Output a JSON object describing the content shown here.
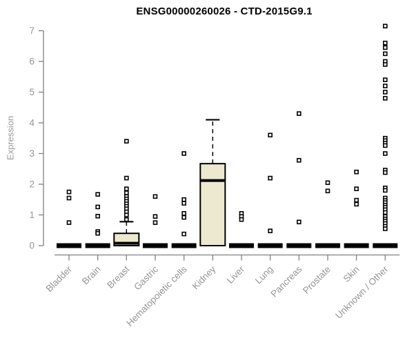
{
  "chart_data": {
    "type": "boxplot",
    "title": "ENSG00000260026 - CTD-2015G9.1",
    "ylabel": "Expression",
    "ylim": [
      0,
      7
    ],
    "yticks": [
      0,
      1,
      2,
      3,
      4,
      5,
      6,
      7
    ],
    "grid": false,
    "legend": "none",
    "box_fill": "#EDE8D0",
    "box_stroke": "#000000",
    "axis_color": "#808080",
    "label_color": "#959595",
    "categories": [
      {
        "label": "Bladder",
        "q1": 0,
        "median": 0,
        "q3": 0,
        "outliers": [
          1.75,
          1.55,
          0.75
        ]
      },
      {
        "label": "Brain",
        "q1": 0,
        "median": 0,
        "q3": 0,
        "outliers": [
          1.67,
          1.26,
          0.96,
          0.46,
          0.4
        ]
      },
      {
        "label": "Breast",
        "q1": 0,
        "median": 0.08,
        "q3": 0.4,
        "whisker_high": 0.78,
        "outliers": [
          3.4,
          2.2,
          1.85,
          1.72,
          1.6,
          1.52,
          1.44,
          1.36,
          1.28,
          1.2,
          1.1,
          1.0,
          0.85
        ]
      },
      {
        "label": "Gastric",
        "q1": 0,
        "median": 0,
        "q3": 0,
        "outliers": [
          1.6,
          0.95,
          0.75
        ]
      },
      {
        "label": "Hematopoietic cells",
        "q1": 0,
        "median": 0,
        "q3": 0,
        "outliers": [
          3.0,
          1.5,
          1.38,
          1.05,
          0.92,
          0.38
        ]
      },
      {
        "label": "Kidney",
        "q1": 0,
        "median": 2.12,
        "q3": 2.67,
        "whisker_high": 4.1,
        "outliers": []
      },
      {
        "label": "Liver",
        "q1": 0,
        "median": 0,
        "q3": 0,
        "outliers": [
          1.05,
          0.95,
          0.85
        ]
      },
      {
        "label": "Lung",
        "q1": 0,
        "median": 0,
        "q3": 0,
        "outliers": [
          3.6,
          2.2,
          0.48
        ]
      },
      {
        "label": "Pancreas",
        "q1": 0,
        "median": 0,
        "q3": 0,
        "outliers": [
          4.3,
          2.78,
          0.77
        ]
      },
      {
        "label": "Prostate",
        "q1": 0,
        "median": 0,
        "q3": 0,
        "outliers": [
          2.05,
          1.78
        ]
      },
      {
        "label": "Skin",
        "q1": 0,
        "median": 0,
        "q3": 0,
        "outliers": [
          2.4,
          1.85,
          1.48,
          1.35
        ]
      },
      {
        "label": "Unknown / Other",
        "q1": 0,
        "median": 0,
        "q3": 0,
        "outliers": [
          7.15,
          6.6,
          6.45,
          6.25,
          6.0,
          5.9,
          5.4,
          5.2,
          5.0,
          4.8,
          3.5,
          3.42,
          3.34,
          3.26,
          3.0,
          2.46,
          2.38,
          1.88,
          1.8,
          1.55,
          1.47,
          1.4,
          1.32,
          1.25,
          1.17,
          1.08,
          0.95,
          0.87,
          0.8,
          0.72,
          0.63,
          0.55
        ]
      }
    ]
  }
}
